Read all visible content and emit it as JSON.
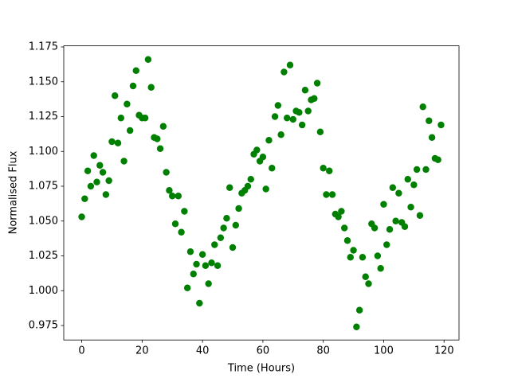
{
  "chart_data": {
    "type": "scatter",
    "x_label": "Time (Hours)",
    "y_label": "Normalised Flux",
    "color": "#008000",
    "x": [
      0,
      1,
      2,
      3,
      4,
      5,
      6,
      7,
      8,
      9,
      10,
      11,
      12,
      13,
      14,
      15,
      16,
      17,
      18,
      19,
      20,
      21,
      22,
      23,
      24,
      25,
      26,
      27,
      28,
      29,
      30,
      31,
      32,
      33,
      34,
      35,
      36,
      37,
      38,
      39,
      40,
      41,
      42,
      43,
      44,
      45,
      46,
      47,
      48,
      49,
      50,
      51,
      52,
      53,
      54,
      55,
      56,
      57,
      58,
      59,
      60,
      61,
      62,
      63,
      64,
      65,
      66,
      67,
      68,
      69,
      70,
      71,
      72,
      73,
      74,
      75,
      76,
      77,
      78,
      79,
      80,
      81,
      82,
      83,
      84,
      85,
      86,
      87,
      88,
      89,
      90,
      91,
      92,
      93,
      94,
      95,
      96,
      97,
      98,
      99,
      100,
      101,
      102,
      103,
      104,
      105,
      106,
      107,
      108,
      109,
      110,
      111,
      112,
      113,
      114,
      115,
      116,
      117,
      118,
      119
    ],
    "values": [
      1.053,
      1.066,
      1.086,
      1.075,
      1.097,
      1.078,
      1.09,
      1.085,
      1.069,
      1.079,
      1.107,
      1.14,
      1.106,
      1.124,
      1.093,
      1.134,
      1.115,
      1.147,
      1.158,
      1.126,
      1.124,
      1.124,
      1.166,
      1.146,
      1.11,
      1.109,
      1.102,
      1.118,
      1.085,
      1.072,
      1.068,
      1.048,
      1.068,
      1.042,
      1.057,
      1.002,
      1.028,
      1.012,
      1.019,
      0.991,
      1.026,
      1.018,
      1.005,
      1.02,
      1.033,
      1.018,
      1.038,
      1.045,
      1.052,
      1.074,
      1.031,
      1.047,
      1.059,
      1.07,
      1.072,
      1.075,
      1.08,
      1.098,
      1.101,
      1.093,
      1.096,
      1.073,
      1.108,
      1.088,
      1.125,
      1.133,
      1.112,
      1.157,
      1.124,
      1.162,
      1.123,
      1.129,
      1.128,
      1.119,
      1.144,
      1.129,
      1.137,
      1.138,
      1.149,
      1.114,
      1.088,
      1.069,
      1.086,
      1.069,
      1.055,
      1.053,
      1.057,
      1.045,
      1.036,
      1.024,
      1.029,
      0.974,
      0.986,
      1.024,
      1.01,
      1.005,
      1.048,
      1.045,
      1.025,
      1.016,
      1.062,
      1.033,
      1.044,
      1.074,
      1.05,
      1.07,
      1.049,
      1.046,
      1.08,
      1.06,
      1.076,
      1.087,
      1.054,
      1.132,
      1.087,
      1.122,
      1.11,
      1.095,
      1.094,
      1.119
    ],
    "xlim": [
      -5.95,
      124.95
    ],
    "ylim": [
      0.9646,
      1.1758
    ],
    "xticks": [
      0,
      20,
      40,
      60,
      80,
      100,
      120
    ],
    "yticks": [
      0.975,
      {
        "value": 1.0,
        "label": "1.000"
      },
      1.025,
      {
        "value": 1.05,
        "label": "1.050"
      },
      1.075,
      {
        "value": 1.1,
        "label": "1.100"
      },
      1.125,
      {
        "value": 1.15,
        "label": "1.150"
      },
      1.175
    ]
  }
}
